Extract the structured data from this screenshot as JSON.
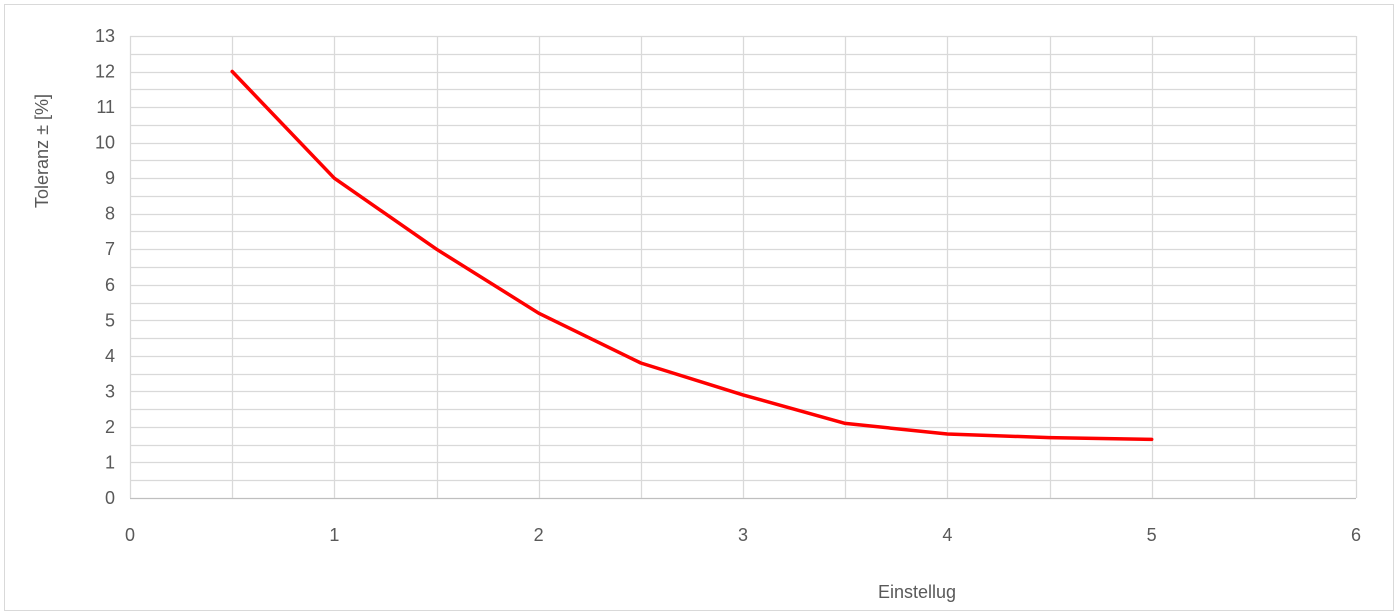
{
  "chart_data": {
    "type": "line",
    "title": "",
    "xlabel": "Einstellug",
    "ylabel": "Toleranz ± [%]",
    "xlim": [
      0,
      6
    ],
    "ylim": [
      0,
      13
    ],
    "x_major_ticks": [
      0,
      1,
      2,
      3,
      4,
      5,
      6
    ],
    "x_minor_step": 0.5,
    "y_major_ticks": [
      0,
      1,
      2,
      3,
      4,
      5,
      6,
      7,
      8,
      9,
      10,
      11,
      12,
      13
    ],
    "y_minor_step": 0.5,
    "grid": true,
    "legend": "none",
    "series": [
      {
        "color": "#ff0000",
        "x": [
          0.5,
          1,
          1.5,
          2,
          2.5,
          3,
          3.5,
          4,
          4.5,
          5
        ],
        "y": [
          12,
          9,
          7,
          5.2,
          3.8,
          2.9,
          2.1,
          1.8,
          1.7,
          1.65
        ]
      }
    ]
  }
}
